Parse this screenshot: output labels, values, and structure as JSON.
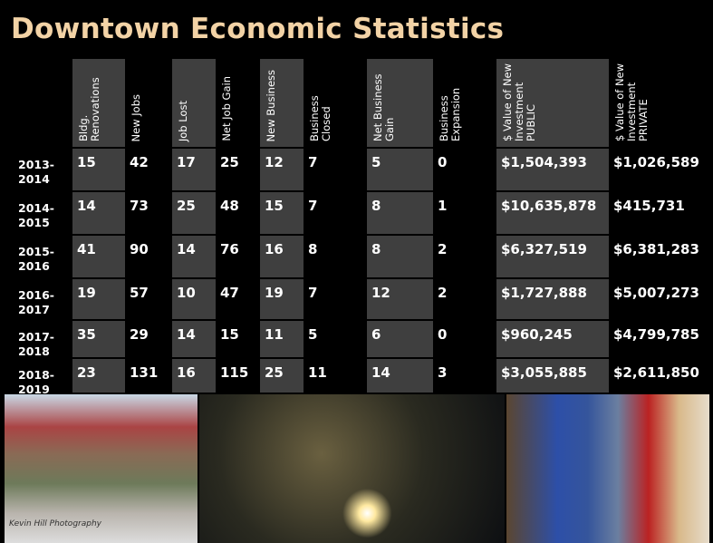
{
  "header": {
    "title": "Downtown Economic Statistics"
  },
  "table": {
    "columns": [
      "",
      "Bldg. Renovations",
      "New Jobs",
      "Job Lost",
      "Net Job Gain",
      "New Business",
      "Business Closed",
      "Net Business Gain",
      "Business Expansion",
      "$ Value of New Investment PUBLIC",
      "$ Value of New Investment PRIVATE"
    ],
    "rows": [
      [
        "2013-2014",
        15,
        42,
        17,
        25,
        12,
        7,
        5,
        0,
        "$1,504,393",
        "$1,026,589"
      ],
      [
        "2014-2015",
        14,
        73,
        25,
        48,
        15,
        7,
        8,
        1,
        "$10,635,878",
        "$415,731"
      ],
      [
        "2015-2016",
        41,
        90,
        14,
        76,
        16,
        8,
        8,
        2,
        "$6,327,519",
        "$6,381,283"
      ],
      [
        "2016-2017",
        19,
        57,
        10,
        47,
        19,
        7,
        12,
        2,
        "$1,727,888",
        "$5,007,273"
      ],
      [
        "2017-2018",
        35,
        29,
        14,
        15,
        11,
        5,
        6,
        0,
        "$960,245",
        "$4,799,785"
      ],
      [
        "2018-2019",
        23,
        131,
        16,
        115,
        25,
        11,
        14,
        3,
        "$3,055,885",
        "$2,611,850"
      ]
    ]
  },
  "photo_credit": "Kevin Hill Photography"
}
